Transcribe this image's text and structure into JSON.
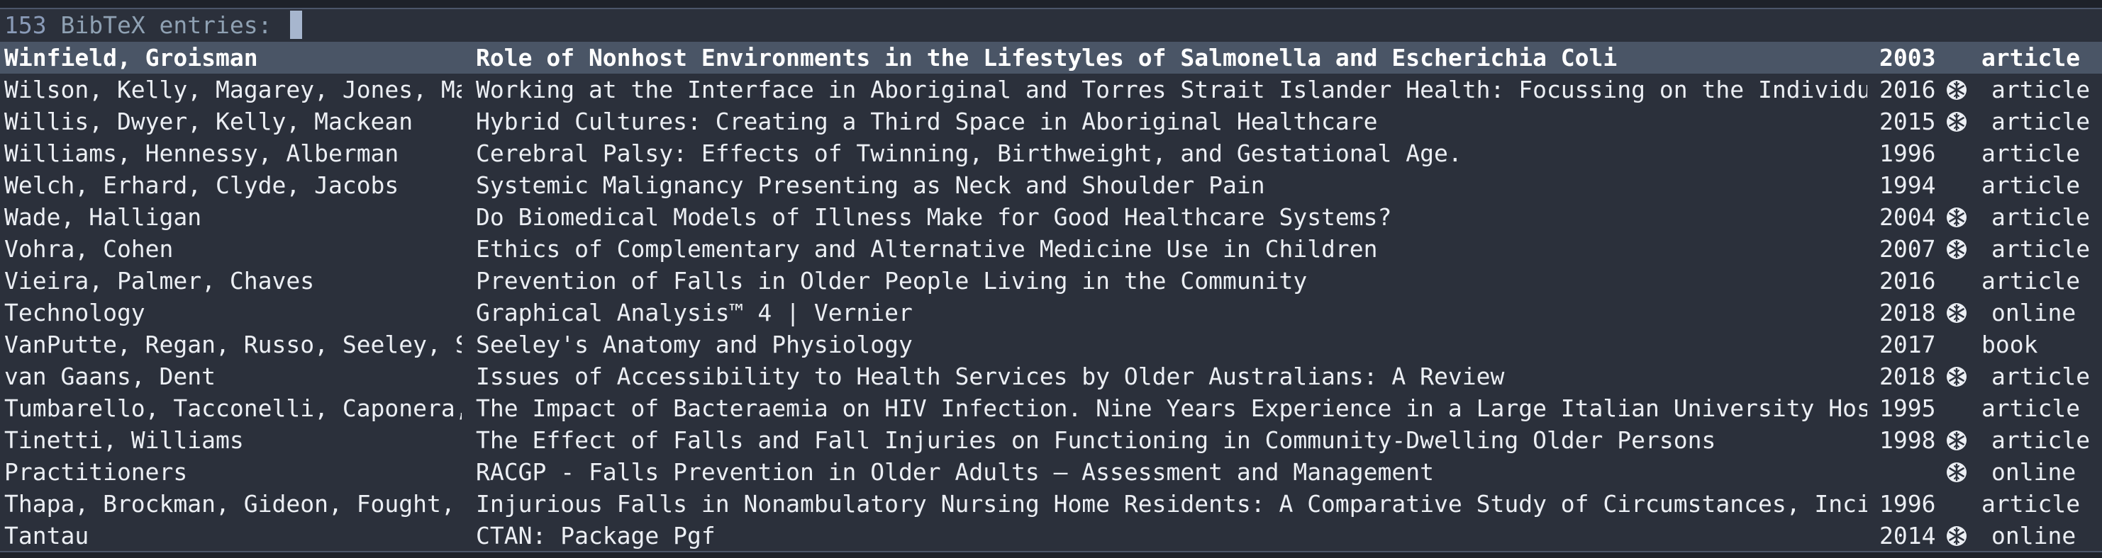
{
  "prompt": {
    "count": "153",
    "label": "BibTeX entries:"
  },
  "entries": [
    {
      "author": "Winfield, Groisman",
      "title": "Role of Nonhost Environments in the Lifestyles of Salmonella and Escherichia Coli",
      "year": "2003",
      "has_note": false,
      "type": "article",
      "selected": true
    },
    {
      "author": "Wilson, Kelly, Magarey, Jones, Macke",
      "title": "Working at the Interface in Aboriginal and Torres Strait Islander Health: Focussing on the Individual Health",
      "year": "2016",
      "has_note": true,
      "type": "article",
      "selected": false
    },
    {
      "author": "Willis, Dwyer, Kelly, Mackean",
      "title": "Hybrid Cultures: Creating a Third Space in Aboriginal Healthcare",
      "year": "2015",
      "has_note": true,
      "type": "article",
      "selected": false
    },
    {
      "author": "Williams, Hennessy, Alberman",
      "title": "Cerebral Palsy: Effects of Twinning, Birthweight, and Gestational Age.",
      "year": "1996",
      "has_note": false,
      "type": "article",
      "selected": false
    },
    {
      "author": "Welch, Erhard, Clyde, Jacobs",
      "title": "Systemic Malignancy Presenting as Neck and Shoulder Pain",
      "year": "1994",
      "has_note": false,
      "type": "article",
      "selected": false
    },
    {
      "author": "Wade, Halligan",
      "title": "Do Biomedical Models of Illness Make for Good Healthcare Systems?",
      "year": "2004",
      "has_note": true,
      "type": "article",
      "selected": false
    },
    {
      "author": "Vohra, Cohen",
      "title": "Ethics of Complementary and Alternative Medicine Use in Children",
      "year": "2007",
      "has_note": true,
      "type": "article",
      "selected": false
    },
    {
      "author": "Vieira, Palmer, Chaves",
      "title": "Prevention of Falls in Older People Living in the Community",
      "year": "2016",
      "has_note": false,
      "type": "article",
      "selected": false
    },
    {
      "author": "Technology",
      "title": "Graphical Analysis™ 4 | Vernier",
      "year": "2018",
      "has_note": true,
      "type": "online",
      "selected": false
    },
    {
      "author": "VanPutte, Regan, Russo, Seeley, Step",
      "title": "Seeley's Anatomy and Physiology",
      "year": "2017",
      "has_note": false,
      "type": "book",
      "selected": false
    },
    {
      "author": "van Gaans, Dent",
      "title": "Issues of Accessibility to Health Services by Older Australians: A Review",
      "year": "2018",
      "has_note": true,
      "type": "article",
      "selected": false
    },
    {
      "author": "Tumbarello, Tacconelli, Caponera, Ca",
      "title": "The Impact of Bacteraemia on HIV Infection. Nine Years Experience in a Large Italian University Hospital",
      "year": "1995",
      "has_note": false,
      "type": "article",
      "selected": false
    },
    {
      "author": "Tinetti, Williams",
      "title": "The Effect of Falls and Fall Injuries on Functioning in Community-Dwelling Older Persons",
      "year": "1998",
      "has_note": true,
      "type": "article",
      "selected": false
    },
    {
      "author": "Practitioners",
      "title": "RACGP - Falls Prevention in Older Adults – Assessment and Management",
      "year": "",
      "has_note": true,
      "type": "online",
      "selected": false
    },
    {
      "author": "Thapa, Brockman, Gideon, Fought, Ray",
      "title": "Injurious Falls in Nonambulatory Nursing Home Residents: A Comparative Study of Circumstances, Incidence, and",
      "year": "1996",
      "has_note": false,
      "type": "article",
      "selected": false
    },
    {
      "author": "Tantau",
      "title": "CTAN: Package Pgf",
      "year": "2014",
      "has_note": true,
      "type": "online",
      "selected": false
    }
  ],
  "note_icon": "snowflake-icon",
  "colors": {
    "background": "#2b303b",
    "selection": "#4a5566",
    "text": "#eceff4",
    "prompt": "#8fa1b3"
  }
}
